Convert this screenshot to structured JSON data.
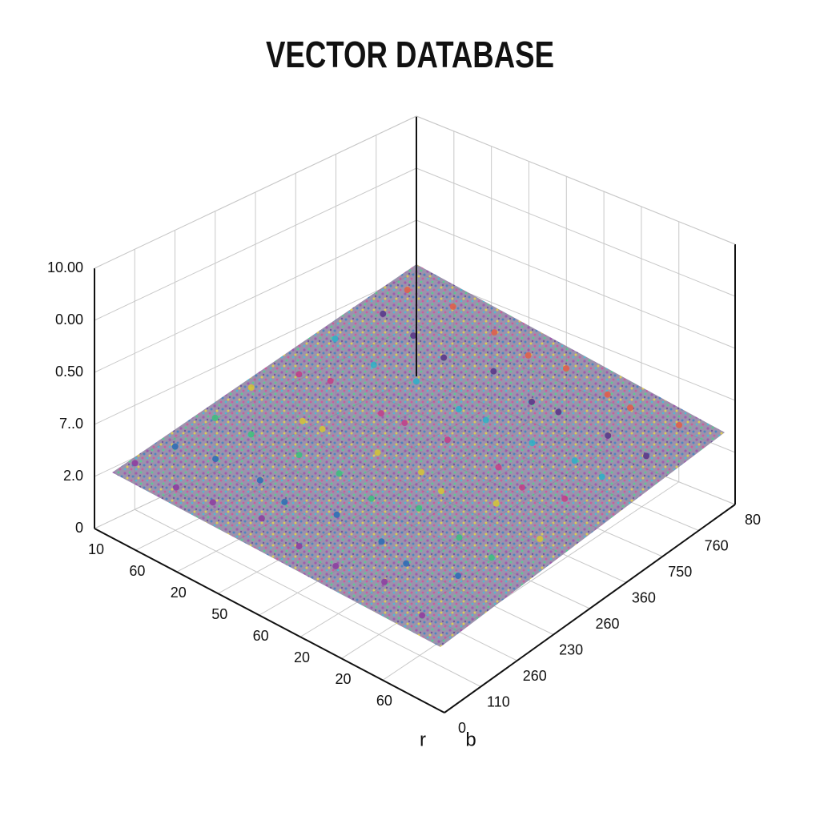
{
  "chart_data": {
    "type": "scatter3d",
    "title": "VECTOR DATABASE",
    "xlabel": "r",
    "ylabel": "b",
    "xlim": [
      0,
      8.5
    ],
    "ylim": [
      0,
      8
    ],
    "zlim": [
      0,
      5
    ],
    "xticks": [
      {
        "value": 0,
        "label": "10"
      },
      {
        "value": 1,
        "label": "60"
      },
      {
        "value": 2,
        "label": "20"
      },
      {
        "value": 3,
        "label": "50"
      },
      {
        "value": 4,
        "label": "60"
      },
      {
        "value": 5,
        "label": "20"
      },
      {
        "value": 6,
        "label": "20"
      },
      {
        "value": 7,
        "label": "60"
      }
    ],
    "yticks": [
      0,
      {
        "value": 1,
        "label": "110"
      },
      {
        "value": 2,
        "label": "260"
      },
      {
        "value": 3,
        "label": "230"
      },
      {
        "value": 4,
        "label": "260"
      },
      {
        "value": 5,
        "label": "360"
      },
      {
        "value": 6,
        "label": "750"
      },
      {
        "value": 7,
        "label": "760"
      },
      {
        "value": 8,
        "label": "80"
      }
    ],
    "zticks": [
      0,
      {
        "value": 1,
        "label": "2.0"
      },
      {
        "value": 2,
        "label": "7..0"
      },
      {
        "value": 3,
        "label": "0.50"
      },
      {
        "value": 4,
        "label": "0.00"
      },
      {
        "value": 5,
        "label": "10.00"
      }
    ],
    "grid": true,
    "palette": [
      "#8e3fa0",
      "#2f6fb5",
      "#3fbf7f",
      "#d4c23a",
      "#c2408a",
      "#30b0c8",
      "#5a3a8a",
      "#e0604a"
    ],
    "x": [
      0.4,
      0.6,
      0.5,
      0.3,
      0.7,
      0.5,
      0.6,
      0.4,
      1.6,
      1.4,
      1.5,
      1.7,
      1.3,
      1.6,
      1.5,
      1.4,
      2.4,
      2.6,
      2.5,
      2.3,
      2.7,
      2.5,
      2.4,
      2.6,
      3.5,
      3.3,
      3.6,
      3.5,
      3.4,
      3.7,
      3.5,
      3.6,
      4.6,
      4.4,
      4.5,
      4.7,
      4.3,
      4.5,
      4.6,
      4.4,
      5.4,
      5.6,
      5.5,
      5.3,
      5.7,
      5.5,
      5.4,
      5.6,
      6.5,
      6.3,
      6.6,
      6.5,
      6.4,
      6.7,
      6.5,
      6.3,
      7.6,
      7.4,
      7.5,
      7.7,
      7.3,
      7.5,
      7.6,
      7.4
    ],
    "y": [
      0.6,
      1.4,
      2.5,
      3.6,
      4.4,
      5.5,
      6.6,
      7.4,
      0.4,
      1.6,
      2.4,
      3.5,
      4.6,
      5.4,
      6.5,
      7.6,
      0.5,
      1.5,
      2.6,
      3.4,
      4.5,
      5.6,
      6.4,
      7.5,
      0.6,
      1.4,
      2.5,
      3.6,
      4.4,
      5.5,
      6.6,
      7.4,
      0.4,
      1.6,
      2.4,
      3.5,
      4.6,
      5.4,
      6.5,
      7.6,
      0.5,
      1.5,
      2.6,
      3.4,
      4.5,
      5.6,
      6.4,
      7.5,
      0.6,
      1.4,
      2.5,
      3.6,
      4.4,
      5.5,
      6.6,
      7.4,
      0.4,
      1.6,
      2.4,
      3.5,
      4.6,
      5.4,
      6.5,
      7.6
    ],
    "z": [
      1.2,
      1.3,
      1.4,
      1.5,
      1.6,
      1.8,
      1.9,
      2.0,
      1.3,
      1.3,
      1.5,
      1.4,
      1.6,
      1.7,
      1.8,
      1.9,
      1.3,
      1.4,
      1.4,
      1.5,
      1.5,
      1.6,
      1.7,
      1.8,
      1.4,
      1.3,
      1.5,
      1.4,
      1.6,
      1.5,
      1.7,
      1.7,
      1.4,
      1.4,
      1.4,
      1.5,
      1.5,
      1.6,
      1.5,
      1.6,
      1.3,
      1.4,
      1.5,
      1.4,
      1.5,
      1.4,
      1.6,
      1.5,
      1.4,
      1.3,
      1.4,
      1.5,
      1.4,
      1.5,
      1.4,
      1.5,
      1.3,
      1.4,
      1.4,
      1.3,
      1.4,
      1.5,
      1.4,
      1.4
    ]
  }
}
